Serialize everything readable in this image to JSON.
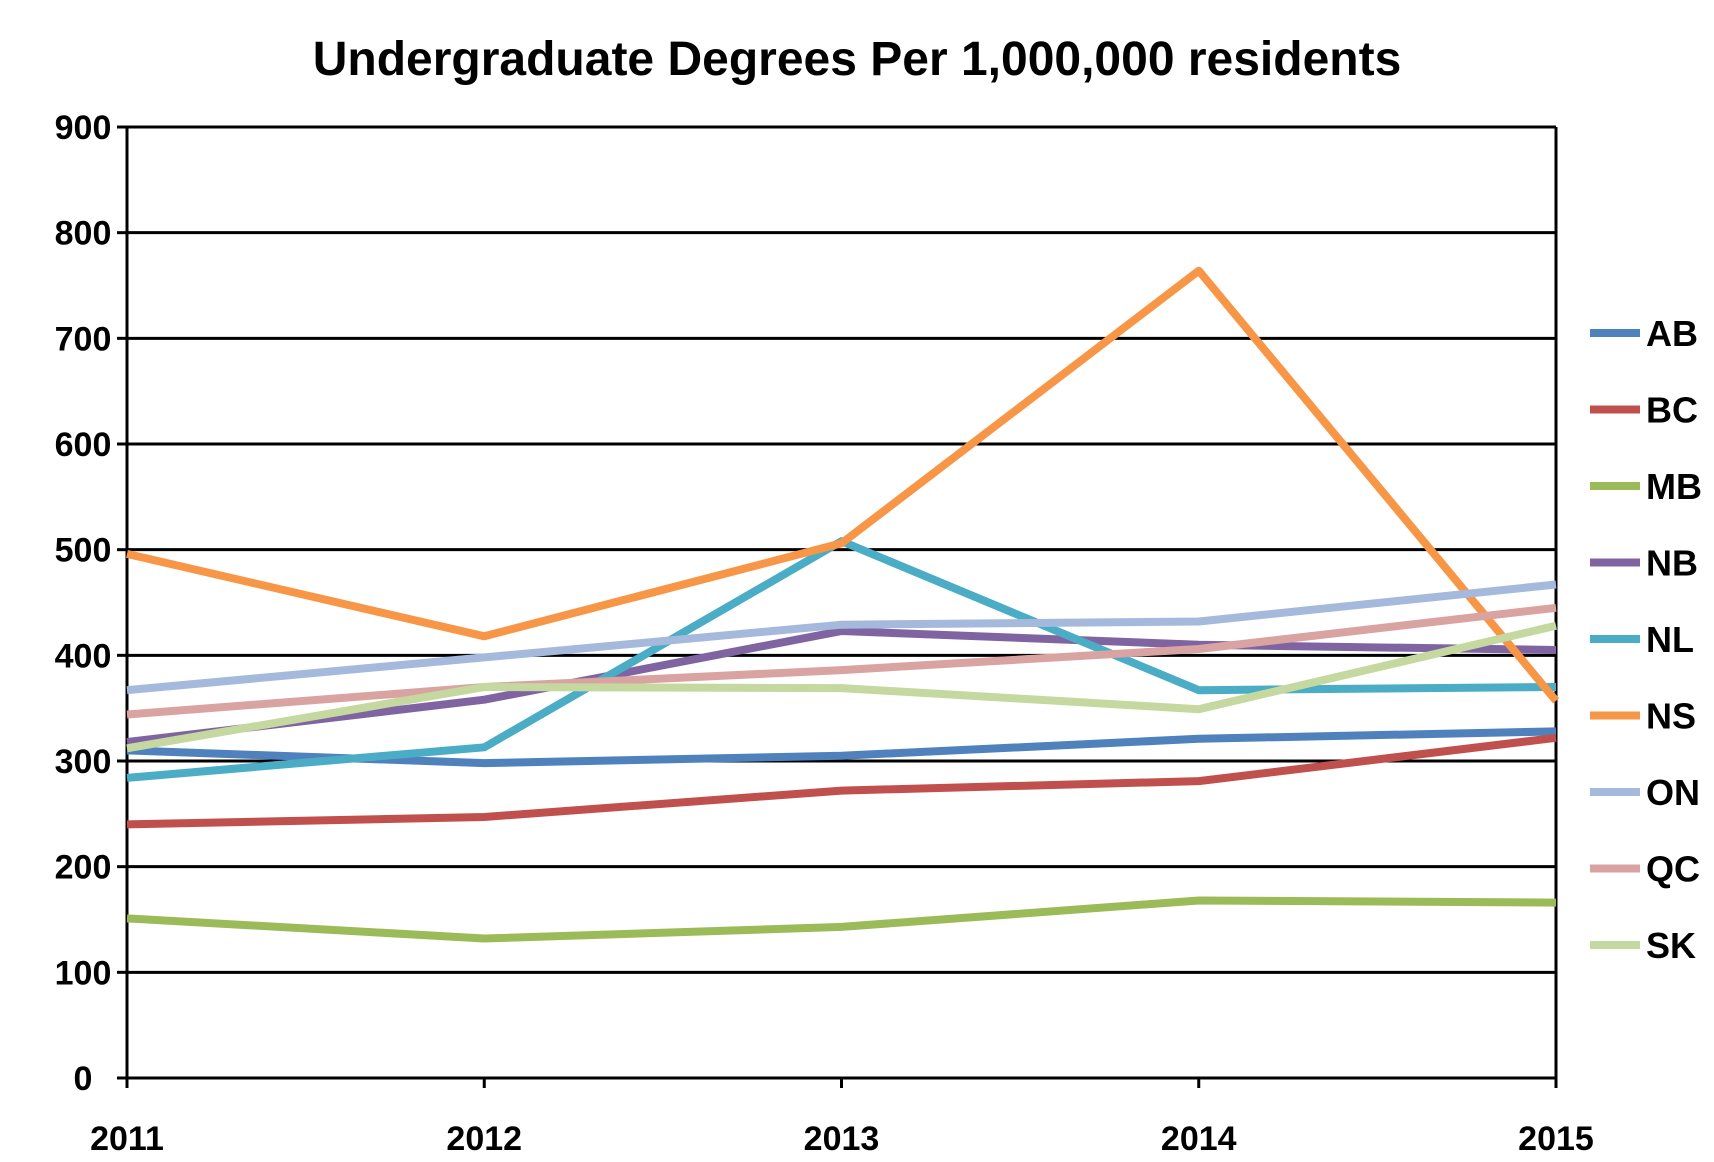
{
  "chart_data": {
    "type": "line",
    "title": "Undergraduate Degrees Per 1,000,000 residents",
    "xlabel": "",
    "ylabel": "",
    "x": [
      "2011",
      "2012",
      "2013",
      "2014",
      "2015"
    ],
    "ylim": [
      0,
      900
    ],
    "yticks": [
      "0",
      "100",
      "200",
      "300",
      "400",
      "500",
      "600",
      "700",
      "800",
      "900"
    ],
    "grid": "horizontal",
    "legend_position": "right",
    "series": [
      {
        "name": "AB",
        "color": "#4f81bd",
        "values": [
          310,
          298,
          305,
          321,
          328
        ]
      },
      {
        "name": "BC",
        "color": "#c0504d",
        "values": [
          240,
          247,
          272,
          281,
          322
        ]
      },
      {
        "name": "MB",
        "color": "#9bbb59",
        "values": [
          151,
          132,
          143,
          168,
          166
        ]
      },
      {
        "name": "NB",
        "color": "#8064a2",
        "values": [
          318,
          358,
          423,
          410,
          405
        ]
      },
      {
        "name": "NL",
        "color": "#4bacc6",
        "values": [
          284,
          313,
          508,
          367,
          370
        ]
      },
      {
        "name": "NS",
        "color": "#f79646",
        "values": [
          496,
          418,
          506,
          764,
          357
        ]
      },
      {
        "name": "ON",
        "color": "#a5b9dc",
        "values": [
          367,
          398,
          429,
          432,
          467
        ]
      },
      {
        "name": "QC",
        "color": "#d9a3a1",
        "values": [
          344,
          370,
          386,
          406,
          445
        ]
      },
      {
        "name": "SK",
        "color": "#c4d8a0",
        "values": [
          312,
          370,
          369,
          349,
          428
        ]
      }
    ]
  }
}
